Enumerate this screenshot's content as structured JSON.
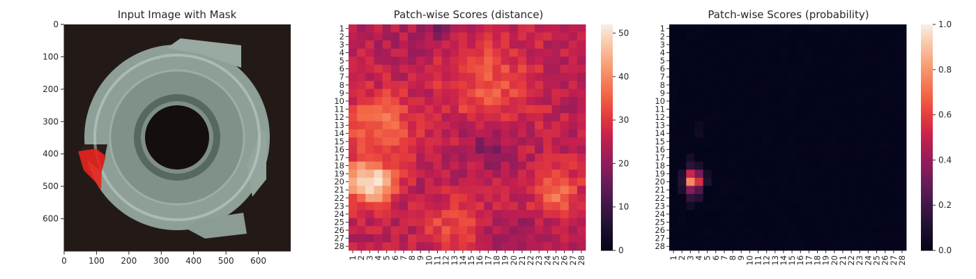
{
  "chart_data": [
    {
      "type": "image",
      "title": "Input Image with Mask",
      "xlim": [
        0,
        700
      ],
      "ylim": [
        700,
        0
      ],
      "xticks": [
        "0",
        "100",
        "200",
        "300",
        "400",
        "500",
        "600"
      ],
      "yticks": [
        "0",
        "100",
        "200",
        "300",
        "400",
        "500",
        "600"
      ],
      "colors": {
        "background": "#231a17",
        "part": "#8c9e95",
        "mask": "#e8241e"
      }
    },
    {
      "type": "heatmap",
      "title": "Patch-wise Scores (distance)",
      "x_tick_labels": [
        "1",
        "2",
        "3",
        "4",
        "5",
        "6",
        "7",
        "8",
        "9",
        "10",
        "11",
        "12",
        "13",
        "14",
        "15",
        "16",
        "17",
        "18",
        "19",
        "20",
        "21",
        "22",
        "23",
        "24",
        "25",
        "26",
        "27",
        "28"
      ],
      "y_tick_labels": [
        "1",
        "2",
        "3",
        "4",
        "5",
        "6",
        "7",
        "8",
        "9",
        "10",
        "11",
        "12",
        "13",
        "14",
        "15",
        "16",
        "17",
        "18",
        "19",
        "20",
        "21",
        "22",
        "23",
        "24",
        "25",
        "26",
        "27",
        "28"
      ],
      "colorbar": {
        "min": 0,
        "max": 52,
        "ticks": [
          "0",
          "10",
          "20",
          "30",
          "40",
          "50"
        ]
      },
      "rows": 28,
      "cols": 28,
      "base_value": 25,
      "hotspots": [
        {
          "row": 20,
          "col": 3,
          "peak": 52,
          "radius": 2.0
        },
        {
          "row": 13,
          "col": 4,
          "peak": 37,
          "radius": 3.0
        },
        {
          "row": 8,
          "col": 17,
          "peak": 34,
          "radius": 4.0
        },
        {
          "row": 21,
          "col": 25,
          "peak": 37,
          "radius": 2.0
        },
        {
          "row": 25,
          "col": 13,
          "peak": 33,
          "radius": 2.5
        }
      ],
      "coldspots": [
        {
          "row": 15,
          "col": 17,
          "depth": 8,
          "radius": 2.0
        },
        {
          "row": 1,
          "col": 11,
          "depth": 6,
          "radius": 2.0
        },
        {
          "row": 27,
          "col": 20,
          "depth": 5,
          "radius": 2.0
        }
      ]
    },
    {
      "type": "heatmap",
      "title": "Patch-wise Scores (probability)",
      "x_tick_labels": [
        "1",
        "2",
        "3",
        "4",
        "5",
        "6",
        "7",
        "8",
        "9",
        "10",
        "11",
        "12",
        "13",
        "14",
        "15",
        "16",
        "17",
        "18",
        "19",
        "20",
        "21",
        "22",
        "23",
        "24",
        "25",
        "26",
        "27",
        "28"
      ],
      "y_tick_labels": [
        "1",
        "2",
        "3",
        "4",
        "5",
        "6",
        "7",
        "8",
        "9",
        "10",
        "11",
        "12",
        "13",
        "14",
        "15",
        "16",
        "17",
        "18",
        "19",
        "20",
        "21",
        "22",
        "23",
        "24",
        "25",
        "26",
        "27",
        "28"
      ],
      "colorbar": {
        "min": 0,
        "max": 1,
        "ticks": [
          "0.0",
          "0.2",
          "0.4",
          "0.6",
          "0.8",
          "1.0"
        ]
      },
      "rows": 28,
      "cols": 28,
      "base_value": 0.01,
      "cells": [
        {
          "row": 19,
          "col": 3,
          "value": 0.52
        },
        {
          "row": 19,
          "col": 4,
          "value": 0.33
        },
        {
          "row": 20,
          "col": 3,
          "value": 0.78
        },
        {
          "row": 20,
          "col": 4,
          "value": 0.56
        },
        {
          "row": 21,
          "col": 3,
          "value": 0.36
        },
        {
          "row": 21,
          "col": 4,
          "value": 0.24
        },
        {
          "row": 18,
          "col": 3,
          "value": 0.14
        },
        {
          "row": 18,
          "col": 4,
          "value": 0.09
        },
        {
          "row": 22,
          "col": 3,
          "value": 0.16
        },
        {
          "row": 22,
          "col": 4,
          "value": 0.12
        },
        {
          "row": 20,
          "col": 2,
          "value": 0.13
        },
        {
          "row": 19,
          "col": 2,
          "value": 0.1
        },
        {
          "row": 21,
          "col": 2,
          "value": 0.09
        },
        {
          "row": 20,
          "col": 5,
          "value": 0.1
        },
        {
          "row": 19,
          "col": 5,
          "value": 0.07
        },
        {
          "row": 17,
          "col": 3,
          "value": 0.07
        },
        {
          "row": 23,
          "col": 3,
          "value": 0.06
        },
        {
          "row": 14,
          "col": 4,
          "value": 0.05
        },
        {
          "row": 13,
          "col": 4,
          "value": 0.04
        }
      ]
    }
  ]
}
